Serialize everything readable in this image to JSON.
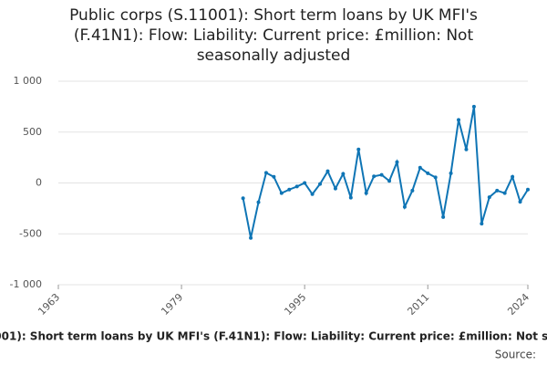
{
  "chart_data": {
    "type": "line",
    "title": "Public corps (S.11001): Short term loans by UK MFI's (F.41N1): Flow: Liability: Current price: £million: Not seasonally adjusted",
    "source_label": "Source:",
    "x": [
      1987,
      1988,
      1989,
      1990,
      1991,
      1992,
      1993,
      1994,
      1995,
      1996,
      1997,
      1998,
      1999,
      2000,
      2001,
      2002,
      2003,
      2004,
      2005,
      2006,
      2007,
      2008,
      2009,
      2010,
      2011,
      2012,
      2013,
      2014,
      2015,
      2016,
      2017,
      2018,
      2019,
      2020,
      2021,
      2022,
      2023,
      2024
    ],
    "series": [
      {
        "color": "#0f75b5",
        "values": [
          -150,
          -540,
          -190,
          100,
          60,
          -100,
          -65,
          -35,
          0,
          -110,
          -10,
          115,
          -55,
          90,
          -145,
          330,
          -100,
          65,
          80,
          20,
          205,
          -235,
          -75,
          150,
          95,
          55,
          -335,
          95,
          620,
          330,
          750,
          -400,
          -140,
          -75,
          -100,
          60,
          -185,
          -65
        ]
      }
    ],
    "xlim": [
      1963,
      2024
    ],
    "xticks": [
      1963,
      1979,
      1995,
      2011,
      2024
    ],
    "ylim": [
      -1000,
      1000
    ],
    "yticks": [
      {
        "value": -1000,
        "label": "-1 000"
      },
      -500,
      0,
      500,
      {
        "value": 1000,
        "label": "1 000"
      }
    ],
    "grid": true
  }
}
